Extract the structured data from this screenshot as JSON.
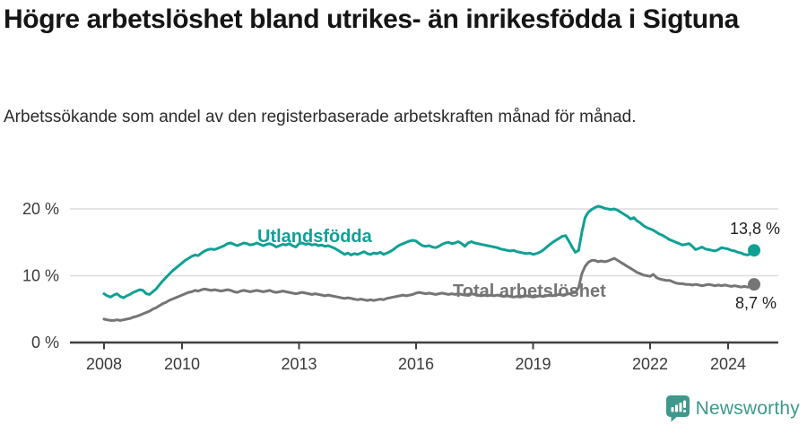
{
  "header": {
    "title": "Högre arbetslöshet bland utrikes- än inrikesfödda i Sigtuna",
    "subtitle": "Arbetssökande som andel av den registerbaserade arbetskraften månad för månad."
  },
  "footer": {
    "brand": "Newsworthy",
    "brand_color": "#3e988c",
    "logo_icon": "bar-chart-speech-bubble-icon"
  },
  "colors": {
    "series_foreign_born": "#10a095",
    "series_total": "#757575",
    "gridline": "#dcdcdc",
    "axis": "#3f3f3f",
    "axis_text": "#3a3a3a",
    "title_text": "#151515",
    "end_label_text": "#1f1f1f"
  },
  "chart_data": {
    "type": "line",
    "x_start_year": 2008,
    "x_step_months": 1,
    "x_end_label_note": "monthly data Jan 2008 – Sep 2024",
    "x_ticks": [
      2008,
      2010,
      2013,
      2016,
      2019,
      2022,
      2024
    ],
    "y_ticks": [
      {
        "value": 0,
        "label": "0 %"
      },
      {
        "value": 10,
        "label": "10 %"
      },
      {
        "value": 20,
        "label": "20 %"
      }
    ],
    "ylim": [
      0,
      21.5
    ],
    "grid": true,
    "legend_position": "inline-labels",
    "series": [
      {
        "name": "Utlandsfödda",
        "color": "#10a095",
        "end_label": "13,8 %",
        "end_value": 13.8,
        "values": [
          7.3,
          7.0,
          6.8,
          7.1,
          7.3,
          6.9,
          6.7,
          7.0,
          7.2,
          7.5,
          7.7,
          7.9,
          7.8,
          7.3,
          7.2,
          7.6,
          8.0,
          8.6,
          9.2,
          9.7,
          10.2,
          10.7,
          11.1,
          11.5,
          11.9,
          12.3,
          12.6,
          12.9,
          13.1,
          13.0,
          13.4,
          13.7,
          13.9,
          14.0,
          13.9,
          14.1,
          14.3,
          14.5,
          14.8,
          14.9,
          14.7,
          14.5,
          14.7,
          14.9,
          14.8,
          14.6,
          14.7,
          14.9,
          14.7,
          14.5,
          14.7,
          14.8,
          14.6,
          14.3,
          14.5,
          14.7,
          14.6,
          14.8,
          14.5,
          14.3,
          14.8,
          14.9,
          14.7,
          14.8,
          14.6,
          14.7,
          14.5,
          14.6,
          14.4,
          14.5,
          14.3,
          14.1,
          13.8,
          13.5,
          13.2,
          13.4,
          13.1,
          13.3,
          13.2,
          13.4,
          13.6,
          13.3,
          13.2,
          13.4,
          13.3,
          13.5,
          13.2,
          13.4,
          13.6,
          13.9,
          14.3,
          14.6,
          14.8,
          15.0,
          15.2,
          15.3,
          15.2,
          14.8,
          14.5,
          14.4,
          14.5,
          14.3,
          14.2,
          14.4,
          14.7,
          14.9,
          15.0,
          14.8,
          14.9,
          15.1,
          14.8,
          14.4,
          14.9,
          15.1,
          14.9,
          14.8,
          14.7,
          14.6,
          14.5,
          14.4,
          14.3,
          14.2,
          14.0,
          13.9,
          13.8,
          13.7,
          13.8,
          13.6,
          13.5,
          13.4,
          13.3,
          13.4,
          13.2,
          13.3,
          13.5,
          13.8,
          14.2,
          14.6,
          15.0,
          15.3,
          15.6,
          15.9,
          16.0,
          15.2,
          14.3,
          13.5,
          13.8,
          16.5,
          18.7,
          19.5,
          19.9,
          20.2,
          20.4,
          20.3,
          20.1,
          20.0,
          19.9,
          20.0,
          19.8,
          19.5,
          19.2,
          18.9,
          18.5,
          18.7,
          18.2,
          17.9,
          17.5,
          17.2,
          17.0,
          16.8,
          16.5,
          16.2,
          16.0,
          15.7,
          15.4,
          15.2,
          15.0,
          14.8,
          14.6,
          14.7,
          14.8,
          14.4,
          13.9,
          14.1,
          14.3,
          14.0,
          13.9,
          13.8,
          13.7,
          13.9,
          14.2,
          14.1,
          14.0,
          13.8,
          13.7,
          13.5,
          13.4,
          13.2,
          13.1,
          13.3,
          13.8
        ]
      },
      {
        "name": "Total arbetslöshet",
        "color": "#757575",
        "end_label": "8,7 %",
        "end_value": 8.7,
        "values": [
          3.5,
          3.4,
          3.3,
          3.3,
          3.4,
          3.3,
          3.4,
          3.5,
          3.6,
          3.8,
          3.9,
          4.1,
          4.3,
          4.5,
          4.7,
          5.0,
          5.2,
          5.5,
          5.8,
          6.0,
          6.3,
          6.5,
          6.7,
          6.9,
          7.1,
          7.3,
          7.5,
          7.6,
          7.8,
          7.7,
          7.9,
          8.0,
          7.9,
          7.8,
          7.9,
          7.8,
          7.7,
          7.8,
          7.9,
          7.8,
          7.6,
          7.5,
          7.7,
          7.8,
          7.7,
          7.6,
          7.7,
          7.8,
          7.7,
          7.6,
          7.7,
          7.8,
          7.6,
          7.5,
          7.6,
          7.7,
          7.6,
          7.5,
          7.4,
          7.3,
          7.4,
          7.5,
          7.4,
          7.3,
          7.2,
          7.3,
          7.2,
          7.1,
          7.0,
          7.1,
          7.0,
          6.9,
          6.8,
          6.7,
          6.6,
          6.7,
          6.6,
          6.5,
          6.4,
          6.5,
          6.4,
          6.3,
          6.4,
          6.3,
          6.4,
          6.5,
          6.4,
          6.6,
          6.7,
          6.8,
          6.9,
          7.0,
          7.1,
          7.0,
          7.1,
          7.2,
          7.4,
          7.5,
          7.4,
          7.3,
          7.4,
          7.3,
          7.2,
          7.3,
          7.4,
          7.3,
          7.2,
          7.3,
          7.2,
          7.3,
          7.2,
          7.1,
          7.2,
          7.3,
          7.2,
          7.1,
          7.0,
          7.1,
          7.0,
          7.1,
          7.0,
          7.1,
          7.0,
          6.9,
          7.0,
          6.9,
          6.8,
          6.9,
          6.8,
          6.9,
          7.0,
          6.9,
          6.8,
          6.9,
          7.0,
          6.9,
          7.0,
          7.1,
          7.0,
          7.1,
          7.2,
          7.1,
          7.2,
          7.3,
          7.4,
          7.5,
          8.2,
          10.3,
          11.4,
          12.0,
          12.3,
          12.3,
          12.1,
          12.2,
          12.1,
          12.2,
          12.4,
          12.6,
          12.3,
          12.0,
          11.7,
          11.4,
          11.1,
          10.8,
          10.5,
          10.3,
          10.1,
          10.0,
          9.9,
          10.2,
          9.7,
          9.5,
          9.4,
          9.3,
          9.3,
          9.1,
          8.9,
          8.8,
          8.8,
          8.7,
          8.7,
          8.6,
          8.7,
          8.6,
          8.5,
          8.6,
          8.7,
          8.6,
          8.5,
          8.6,
          8.5,
          8.6,
          8.5,
          8.4,
          8.5,
          8.4,
          8.3,
          8.4,
          8.3,
          8.5,
          8.7
        ]
      }
    ]
  }
}
